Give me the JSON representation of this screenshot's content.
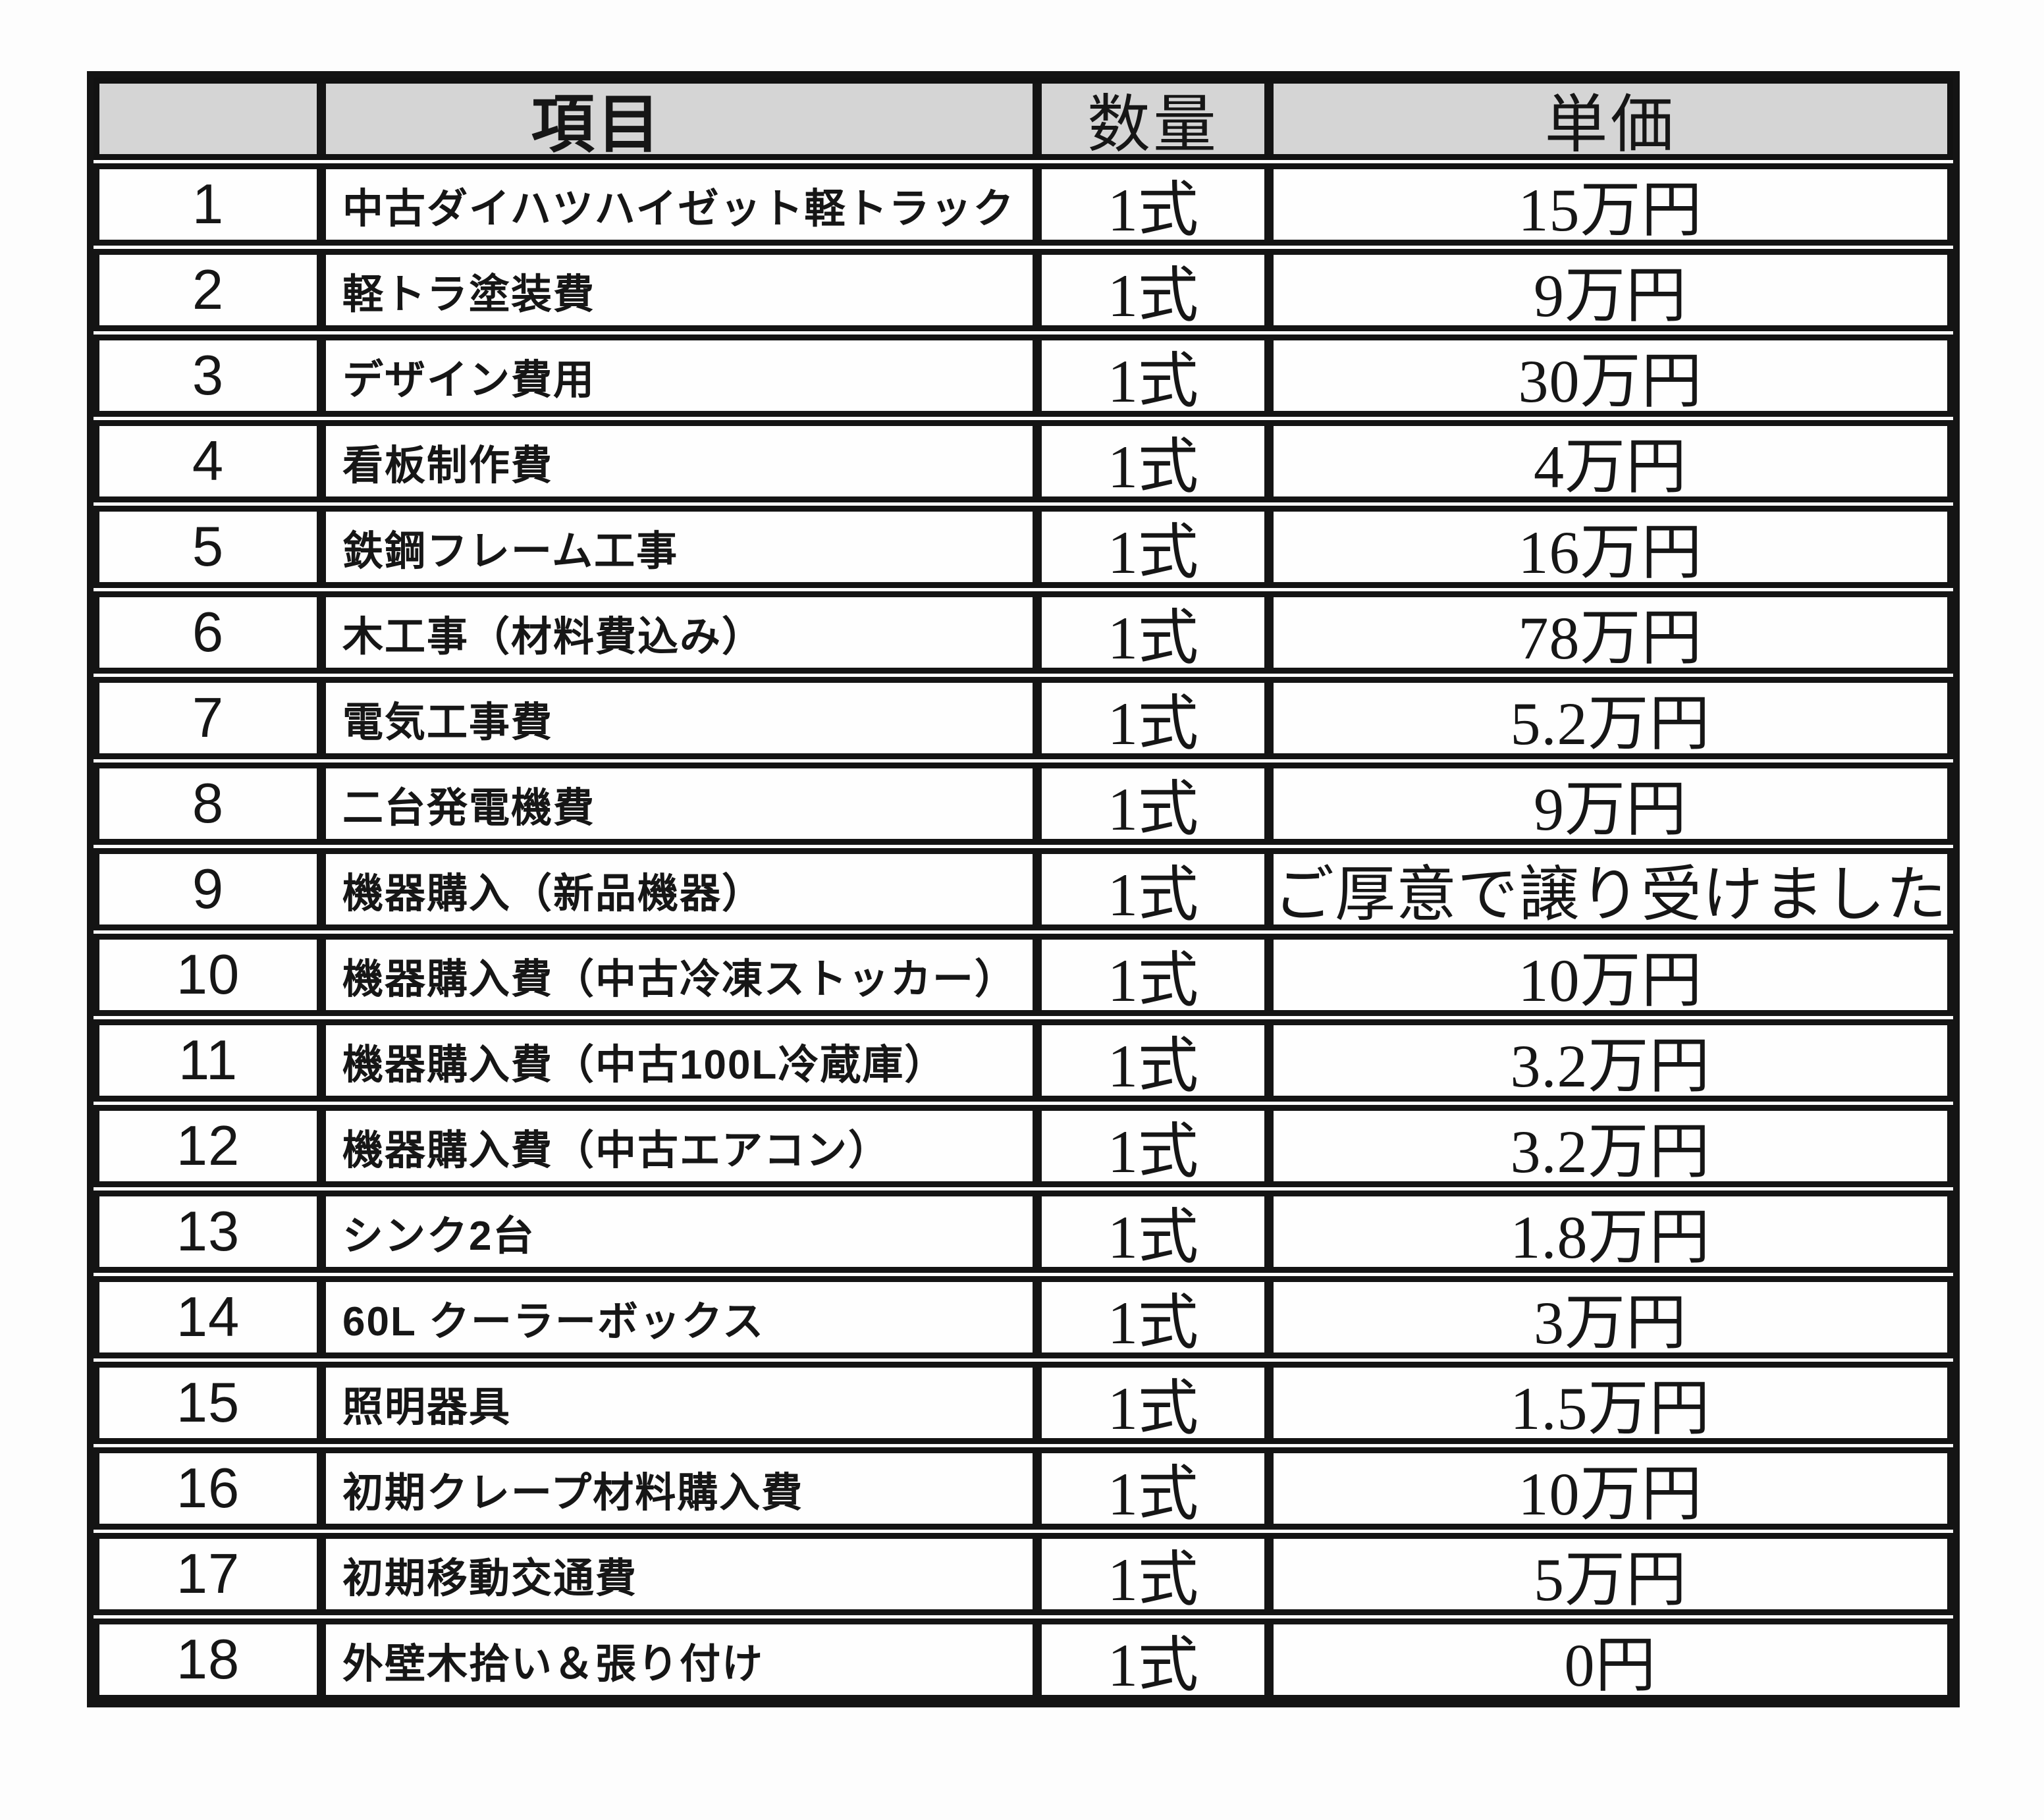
{
  "table": {
    "headers": {
      "item": "項目",
      "qty": "数量",
      "price": "単価"
    },
    "rows": [
      {
        "no": "1",
        "item": "中古ダイハツハイゼット軽トラック",
        "qty": "1式",
        "price": "15万円"
      },
      {
        "no": "2",
        "item": "軽トラ塗装費",
        "qty": "1式",
        "price": "9万円"
      },
      {
        "no": "3",
        "item": "デザイン費用",
        "qty": "1式",
        "price": "30万円"
      },
      {
        "no": "4",
        "item": "看板制作費",
        "qty": "1式",
        "price": "4万円"
      },
      {
        "no": "5",
        "item": "鉄鋼フレーム工事",
        "qty": "1式",
        "price": "16万円"
      },
      {
        "no": "6",
        "item": "木工事（材料費込み）",
        "qty": "1式",
        "price": "78万円"
      },
      {
        "no": "7",
        "item": "電気工事費",
        "qty": "1式",
        "price": "5.2万円"
      },
      {
        "no": "8",
        "item": "二台発電機費",
        "qty": "1式",
        "price": "9万円"
      },
      {
        "no": "9",
        "item": "機器購入（新品機器）",
        "qty": "1式",
        "price": "ご厚意で譲り受けました"
      },
      {
        "no": "10",
        "item": "機器購入費（中古冷凍ストッカー）",
        "qty": "1式",
        "price": "10万円"
      },
      {
        "no": "11",
        "item": "機器購入費（中古100L冷蔵庫）",
        "qty": "1式",
        "price": "3.2万円"
      },
      {
        "no": "12",
        "item": "機器購入費（中古エアコン）",
        "qty": "1式",
        "price": "3.2万円"
      },
      {
        "no": "13",
        "item": "シンク2台",
        "qty": "1式",
        "price": "1.8万円"
      },
      {
        "no": "14",
        "item": "60L クーラーボックス",
        "qty": "1式",
        "price": "3万円"
      },
      {
        "no": "15",
        "item": "照明器具",
        "qty": "1式",
        "price": "1.5万円"
      },
      {
        "no": "16",
        "item": "初期クレープ材料購入費",
        "qty": "1式",
        "price": "10万円"
      },
      {
        "no": "17",
        "item": "初期移動交通費",
        "qty": "1式",
        "price": "5万円"
      },
      {
        "no": "18",
        "item": "外壁木拾い＆張り付け",
        "qty": "1式",
        "price": "0円"
      }
    ]
  },
  "colors": {
    "header_bg": "#d5d5d5",
    "border": "#141414",
    "text": "#161616"
  }
}
